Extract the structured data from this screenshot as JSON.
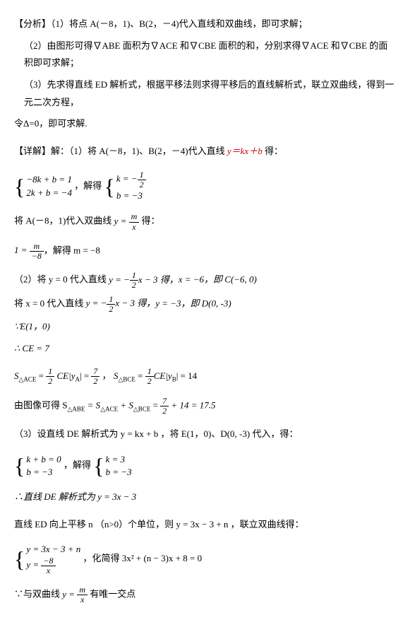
{
  "p1": "【分析】（1）将点 A(－8，1)、B(2，－4)代入直线和双曲线，即可求解；",
  "p2": "（2）由图形可得∇ABE 面积为∇ACE 和∇CBE 面积的和，分别求得∇ACE 和∇CBE 的面积即可求解；",
  "p3": "（3）先求得直线 ED 解析式，根据平移法则求得平移后的直线解析式，联立双曲线，得到一元二次方程，",
  "p4": "令Δ=0，即可求解.",
  "p5_pre": "【详解】解：（1）将 A(－8，1)、B(2，－4)代入直线 ",
  "p5_eq": "y＝kx＋b",
  "p5_post": " 得：",
  "sys1_l1": "−8k + b = 1",
  "sys1_l2": "2k + b = −4",
  "solve_txt": "，解得",
  "sys2_l1_pre": "k = −",
  "sys2_frac_n": "1",
  "sys2_frac_d": "2",
  "sys2_l2": "b = −3",
  "p7_pre": "将 A(－8，1)代入双曲线 ",
  "p7_yeq": "y =",
  "p7_n": "m",
  "p7_d": "x",
  "p7_post": " 得：",
  "p8_pre": "1 =",
  "p8_n": "m",
  "p8_d": "−8",
  "p8_post": "，解得 m = −8",
  "p9_pre": "（2）将 y = 0 代入直线 ",
  "p9_yeq": "y = −",
  "p9_n": "1",
  "p9_d": "2",
  "p9_mid": "x − 3 得，",
  "p9_post": "x = −6，即 C(−6, 0)",
  "p10_pre": "将 x = 0 代入直线 ",
  "p10_yeq": "y = −",
  "p10_n": "1",
  "p10_d": "2",
  "p10_mid": "x − 3 得，",
  "p10_post": "y = −3，即 D(0, -3)",
  "p11": "∵E(1，0)",
  "p12": "∴ CE = 7",
  "p13_l": "S",
  "p13_sub1": "△ACE",
  "p13_eq1": " = ",
  "p13_f1n": "1",
  "p13_f1d": "2",
  "p13_mid1": " CE|y",
  "p13_subA": "A",
  "p13_mid1b": "| = ",
  "p13_f2n": "7",
  "p13_f2d": "2",
  "p13_comma": "，",
  "p13_sub2": "△BCE",
  "p13_eq2": " = ",
  "p13_f3n": "1",
  "p13_f3d": "2",
  "p13_mid2": "CE|y",
  "p13_subB": "B",
  "p13_mid2b": "| = 14",
  "p14_pre": "由图像可得 S",
  "p14_sub1": "△ABE",
  "p14_eq": " = S",
  "p14_sub2": "△ACE",
  "p14_plus": " + S",
  "p14_sub3": "△BCE",
  "p14_eq2": " = ",
  "p14_n": "7",
  "p14_d": "2",
  "p14_post": " + 14 = 17.5",
  "p15": "（3）设直线 DE 解析式为 y = kx + b ，将 E(1，0)、D(0, -3) 代入，得：",
  "sys3_l1": "k + b = 0",
  "sys3_l2": "b = −3",
  "sys4_l1": "k = 3",
  "sys4_l2": "b = −3",
  "p17": "∴直线 DE 解析式为 y = 3x − 3",
  "p18": "直线 ED 向上平移 n （n>0）个单位，则 y = 3x − 3 + n ，联立双曲线得：",
  "sys5_l1": "y = 3x − 3 + n",
  "sys5_l2_pre": "y =",
  "sys5_n": "−8",
  "sys5_d": "x",
  "p19_post": "，化简得 3x² + (n − 3)x + 8 = 0",
  "p20_pre": "∵与双曲线 ",
  "p20_yeq": "y =",
  "p20_n": "m",
  "p20_d": "x",
  "p20_post": " 有唯一交点"
}
